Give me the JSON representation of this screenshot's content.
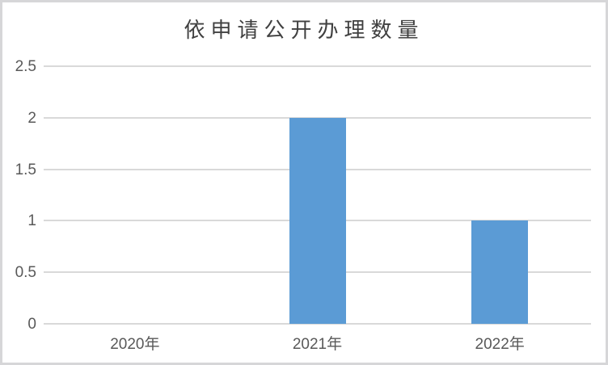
{
  "frame": {
    "background": "#ffffff",
    "border_color": "#d6d6d8"
  },
  "chart_data": {
    "type": "bar",
    "title": "依申请公开办理数量",
    "categories": [
      "2020年",
      "2021年",
      "2022年"
    ],
    "values": [
      0,
      2,
      1
    ],
    "xlabel": "",
    "ylabel": "",
    "ylim": [
      0,
      2.5
    ],
    "ytick_interval": 0.5,
    "ytick_labels": [
      "0",
      "0.5",
      "1",
      "1.5",
      "2",
      "2.5"
    ],
    "grid": "horizontal",
    "legend_position": "none",
    "bar_color": "#5b9bd5",
    "gridline_color": "#d9d9d9",
    "axis_label_color": "#595959",
    "title_color": "#404040"
  }
}
